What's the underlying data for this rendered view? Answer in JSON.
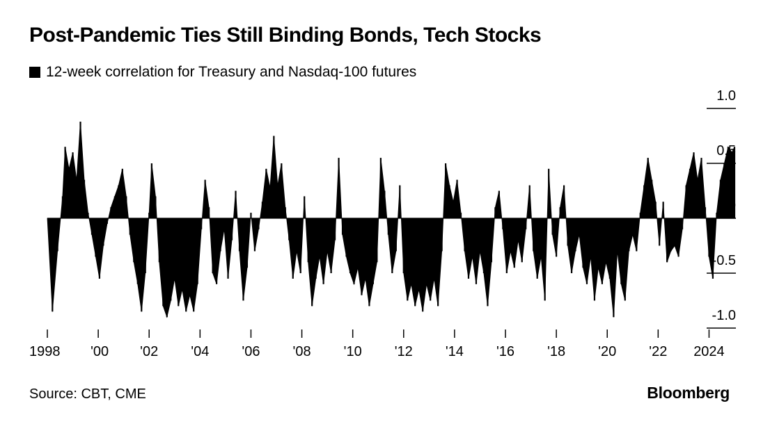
{
  "title": "Post-Pandemic Ties Still Binding Bonds, Tech Stocks",
  "source": "Source: CBT, CME",
  "brand": "Bloomberg",
  "chart_data": {
    "type": "area",
    "series": [
      {
        "name": "12-week correlation for Treasury and Nasdaq-100 futures",
        "color": "#000000",
        "points": [
          [
            1998.0,
            0.0
          ],
          [
            1998.2,
            -0.85
          ],
          [
            1998.4,
            -0.3
          ],
          [
            1998.6,
            0.2
          ],
          [
            1998.7,
            0.65
          ],
          [
            1998.85,
            0.45
          ],
          [
            1999.0,
            0.6
          ],
          [
            1999.15,
            0.35
          ],
          [
            1999.3,
            0.88
          ],
          [
            1999.45,
            0.35
          ],
          [
            1999.6,
            0.05
          ],
          [
            1999.75,
            -0.15
          ],
          [
            1999.9,
            -0.35
          ],
          [
            2000.05,
            -0.55
          ],
          [
            2000.2,
            -0.25
          ],
          [
            2000.35,
            -0.05
          ],
          [
            2000.5,
            0.1
          ],
          [
            2000.65,
            0.2
          ],
          [
            2000.8,
            0.3
          ],
          [
            2000.95,
            0.45
          ],
          [
            2001.1,
            0.2
          ],
          [
            2001.25,
            -0.15
          ],
          [
            2001.4,
            -0.4
          ],
          [
            2001.55,
            -0.6
          ],
          [
            2001.7,
            -0.85
          ],
          [
            2001.85,
            -0.5
          ],
          [
            2002.0,
            0.05
          ],
          [
            2002.1,
            0.5
          ],
          [
            2002.25,
            0.2
          ],
          [
            2002.4,
            -0.4
          ],
          [
            2002.55,
            -0.8
          ],
          [
            2002.7,
            -0.9
          ],
          [
            2002.85,
            -0.75
          ],
          [
            2003.0,
            -0.55
          ],
          [
            2003.15,
            -0.8
          ],
          [
            2003.3,
            -0.65
          ],
          [
            2003.45,
            -0.85
          ],
          [
            2003.6,
            -0.7
          ],
          [
            2003.75,
            -0.85
          ],
          [
            2003.9,
            -0.6
          ],
          [
            2004.05,
            -0.1
          ],
          [
            2004.2,
            0.35
          ],
          [
            2004.35,
            0.1
          ],
          [
            2004.5,
            -0.5
          ],
          [
            2004.65,
            -0.6
          ],
          [
            2004.8,
            -0.3
          ],
          [
            2004.95,
            -0.1
          ],
          [
            2005.1,
            -0.55
          ],
          [
            2005.25,
            -0.2
          ],
          [
            2005.4,
            0.25
          ],
          [
            2005.55,
            -0.3
          ],
          [
            2005.7,
            -0.75
          ],
          [
            2005.85,
            -0.45
          ],
          [
            2006.0,
            0.05
          ],
          [
            2006.15,
            -0.3
          ],
          [
            2006.3,
            -0.1
          ],
          [
            2006.45,
            0.15
          ],
          [
            2006.6,
            0.45
          ],
          [
            2006.75,
            0.28
          ],
          [
            2006.9,
            0.75
          ],
          [
            2007.05,
            0.3
          ],
          [
            2007.2,
            0.5
          ],
          [
            2007.35,
            0.1
          ],
          [
            2007.5,
            -0.2
          ],
          [
            2007.65,
            -0.55
          ],
          [
            2007.8,
            -0.3
          ],
          [
            2007.95,
            -0.5
          ],
          [
            2008.1,
            0.2
          ],
          [
            2008.25,
            -0.4
          ],
          [
            2008.4,
            -0.8
          ],
          [
            2008.55,
            -0.55
          ],
          [
            2008.7,
            -0.35
          ],
          [
            2008.85,
            -0.6
          ],
          [
            2009.0,
            -0.3
          ],
          [
            2009.15,
            -0.5
          ],
          [
            2009.3,
            -0.2
          ],
          [
            2009.45,
            0.55
          ],
          [
            2009.6,
            -0.15
          ],
          [
            2009.75,
            -0.35
          ],
          [
            2009.9,
            -0.5
          ],
          [
            2010.05,
            -0.6
          ],
          [
            2010.2,
            -0.45
          ],
          [
            2010.35,
            -0.7
          ],
          [
            2010.5,
            -0.55
          ],
          [
            2010.65,
            -0.8
          ],
          [
            2010.8,
            -0.6
          ],
          [
            2010.95,
            -0.4
          ],
          [
            2011.1,
            0.55
          ],
          [
            2011.25,
            0.25
          ],
          [
            2011.4,
            -0.15
          ],
          [
            2011.55,
            -0.5
          ],
          [
            2011.7,
            -0.3
          ],
          [
            2011.85,
            0.3
          ],
          [
            2012.0,
            -0.5
          ],
          [
            2012.15,
            -0.75
          ],
          [
            2012.3,
            -0.6
          ],
          [
            2012.45,
            -0.8
          ],
          [
            2012.6,
            -0.65
          ],
          [
            2012.75,
            -0.85
          ],
          [
            2012.9,
            -0.6
          ],
          [
            2013.05,
            -0.75
          ],
          [
            2013.2,
            -0.55
          ],
          [
            2013.35,
            -0.8
          ],
          [
            2013.5,
            -0.3
          ],
          [
            2013.65,
            0.5
          ],
          [
            2013.8,
            0.3
          ],
          [
            2013.95,
            0.15
          ],
          [
            2014.1,
            0.35
          ],
          [
            2014.25,
            0.05
          ],
          [
            2014.4,
            -0.3
          ],
          [
            2014.55,
            -0.55
          ],
          [
            2014.7,
            -0.35
          ],
          [
            2014.85,
            -0.6
          ],
          [
            2015.0,
            -0.3
          ],
          [
            2015.15,
            -0.5
          ],
          [
            2015.3,
            -0.8
          ],
          [
            2015.45,
            -0.4
          ],
          [
            2015.6,
            0.1
          ],
          [
            2015.75,
            0.25
          ],
          [
            2015.9,
            -0.1
          ],
          [
            2016.05,
            -0.5
          ],
          [
            2016.2,
            -0.3
          ],
          [
            2016.35,
            -0.45
          ],
          [
            2016.5,
            -0.2
          ],
          [
            2016.65,
            -0.4
          ],
          [
            2016.8,
            -0.1
          ],
          [
            2016.95,
            0.3
          ],
          [
            2017.1,
            -0.3
          ],
          [
            2017.25,
            -0.55
          ],
          [
            2017.4,
            -0.35
          ],
          [
            2017.55,
            -0.75
          ],
          [
            2017.7,
            0.45
          ],
          [
            2017.85,
            -0.15
          ],
          [
            2018.0,
            -0.35
          ],
          [
            2018.15,
            0.1
          ],
          [
            2018.3,
            0.3
          ],
          [
            2018.45,
            -0.25
          ],
          [
            2018.6,
            -0.5
          ],
          [
            2018.75,
            -0.3
          ],
          [
            2018.9,
            -0.15
          ],
          [
            2019.05,
            -0.45
          ],
          [
            2019.2,
            -0.6
          ],
          [
            2019.35,
            -0.35
          ],
          [
            2019.5,
            -0.75
          ],
          [
            2019.65,
            -0.45
          ],
          [
            2019.8,
            -0.6
          ],
          [
            2019.95,
            -0.4
          ],
          [
            2020.1,
            -0.55
          ],
          [
            2020.25,
            -0.9
          ],
          [
            2020.4,
            -0.3
          ],
          [
            2020.55,
            -0.6
          ],
          [
            2020.7,
            -0.75
          ],
          [
            2020.85,
            -0.3
          ],
          [
            2021.0,
            -0.15
          ],
          [
            2021.15,
            -0.3
          ],
          [
            2021.3,
            0.05
          ],
          [
            2021.45,
            0.3
          ],
          [
            2021.6,
            0.55
          ],
          [
            2021.75,
            0.35
          ],
          [
            2021.9,
            0.15
          ],
          [
            2022.05,
            -0.25
          ],
          [
            2022.2,
            0.15
          ],
          [
            2022.35,
            -0.4
          ],
          [
            2022.5,
            -0.3
          ],
          [
            2022.65,
            -0.25
          ],
          [
            2022.8,
            -0.35
          ],
          [
            2022.95,
            -0.1
          ],
          [
            2023.1,
            0.3
          ],
          [
            2023.25,
            0.45
          ],
          [
            2023.4,
            0.6
          ],
          [
            2023.55,
            0.35
          ],
          [
            2023.7,
            0.55
          ],
          [
            2023.85,
            0.1
          ],
          [
            2024.0,
            -0.35
          ],
          [
            2024.15,
            -0.55
          ],
          [
            2024.3,
            0.05
          ],
          [
            2024.45,
            0.35
          ],
          [
            2024.6,
            0.5
          ],
          [
            2024.75,
            0.65
          ],
          [
            2024.9,
            0.6
          ],
          [
            2025.0,
            0.65
          ]
        ]
      }
    ],
    "x_ticks": [
      1998,
      2000,
      2002,
      2004,
      2006,
      2008,
      2010,
      2012,
      2014,
      2016,
      2018,
      2020,
      2022,
      2024
    ],
    "x_tick_labels": [
      "1998",
      "'00",
      "'02",
      "'04",
      "'06",
      "'08",
      "'10",
      "'12",
      "'14",
      "'16",
      "'18",
      "'20",
      "'22",
      "2024"
    ],
    "y_ticks": [
      1.0,
      0.5,
      0,
      -0.5,
      -1.0
    ],
    "y_tick_labels": [
      "1.0",
      "0.5",
      "0",
      "-0.5",
      "-1.0"
    ],
    "xlim": [
      1998,
      2025
    ],
    "ylim": [
      -1.0,
      1.0
    ],
    "xlabel": "",
    "ylabel": "",
    "grid": false,
    "legend_position": "top-left"
  }
}
